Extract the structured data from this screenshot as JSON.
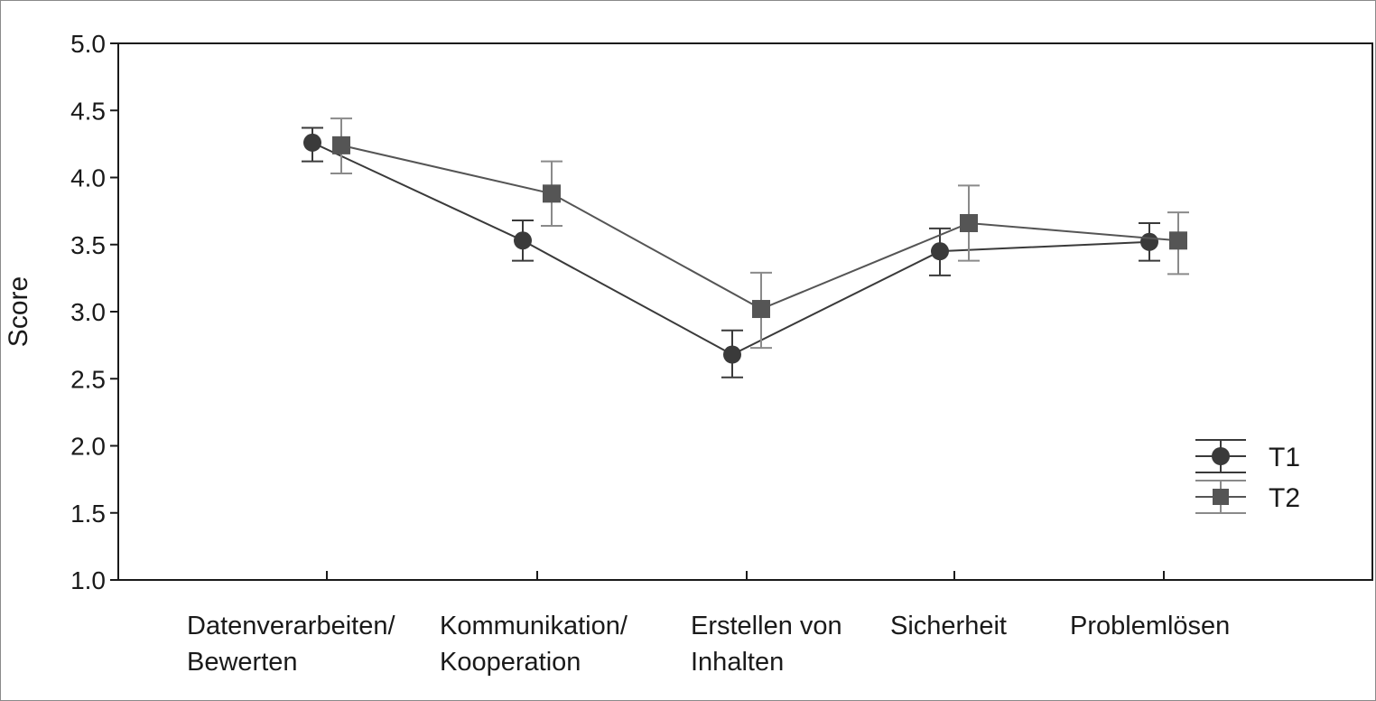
{
  "chart_data": {
    "type": "line",
    "title": "",
    "xlabel": "",
    "ylabel": "Score",
    "ylim": [
      1.0,
      5.0
    ],
    "yticks": [
      "1.0",
      "1.5",
      "2.0",
      "2.5",
      "3.0",
      "3.5",
      "4.0",
      "4.5",
      "5.0"
    ],
    "categories": [
      [
        "Datenverarbeiten/",
        "Bewerten"
      ],
      [
        "Kommunikation/",
        "Kooperation"
      ],
      [
        "Erstellen von",
        "Inhalten"
      ],
      [
        "Sicherheit"
      ],
      [
        "Problemlösen"
      ]
    ],
    "series": [
      {
        "name": "T1",
        "marker": "circle",
        "color": "#3a3a3a",
        "values": [
          4.26,
          3.53,
          2.68,
          3.45,
          3.52
        ],
        "error_low": [
          4.12,
          3.38,
          2.51,
          3.27,
          3.38
        ],
        "error_high": [
          4.37,
          3.68,
          2.86,
          3.62,
          3.66
        ]
      },
      {
        "name": "T2",
        "marker": "square",
        "color": "#555555",
        "errorbar_color": "#8a8a8a",
        "values": [
          4.24,
          3.88,
          3.02,
          3.66,
          3.53
        ],
        "error_low": [
          4.03,
          3.64,
          2.73,
          3.38,
          3.28
        ],
        "error_high": [
          4.44,
          4.12,
          3.29,
          3.94,
          3.74
        ]
      }
    ],
    "grid": false,
    "legend_position": "bottom-right"
  }
}
